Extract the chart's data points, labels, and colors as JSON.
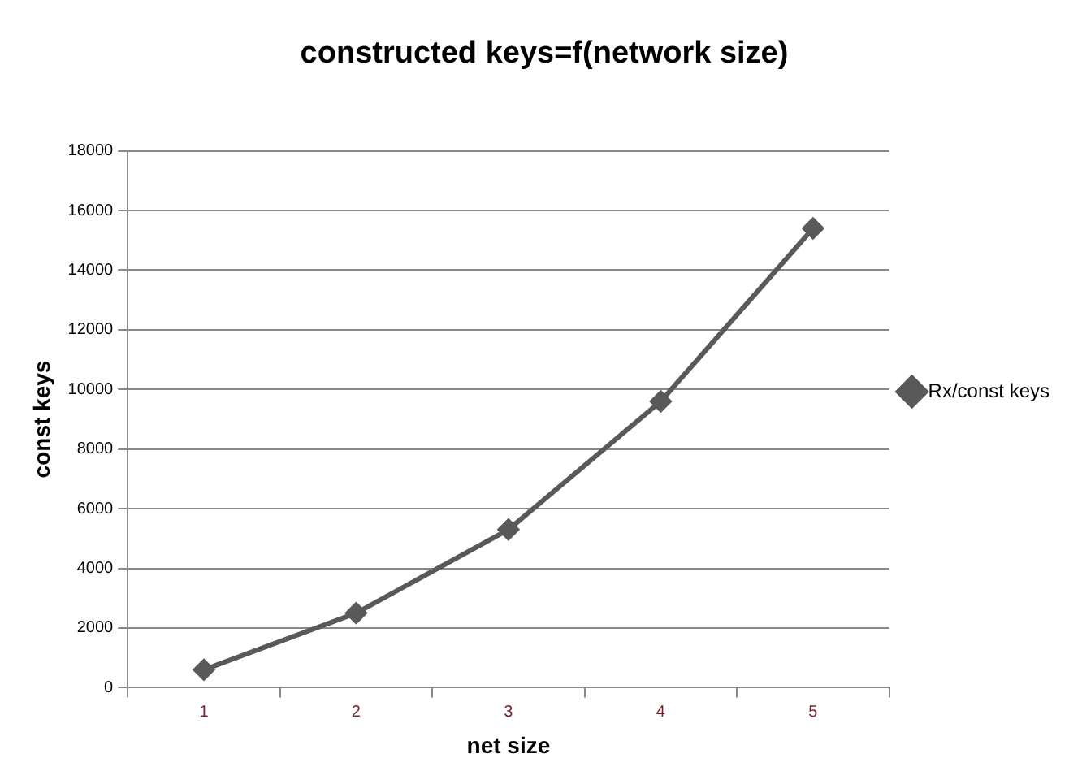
{
  "chart_data": {
    "type": "line",
    "title": "constructed keys=f(network size)",
    "xlabel": "net size",
    "ylabel": "const keys",
    "categories": [
      "1",
      "2",
      "3",
      "4",
      "5"
    ],
    "series": [
      {
        "name": "Rx/const keys",
        "color": "#595959",
        "values": [
          600,
          2500,
          5300,
          9600,
          15400
        ]
      }
    ],
    "ylim": [
      0,
      18000
    ],
    "yticks": [
      0,
      2000,
      4000,
      6000,
      8000,
      10000,
      12000,
      14000,
      16000,
      18000
    ],
    "grid": "y",
    "legend": "right",
    "marker": "diamond",
    "line_style": "solid"
  }
}
